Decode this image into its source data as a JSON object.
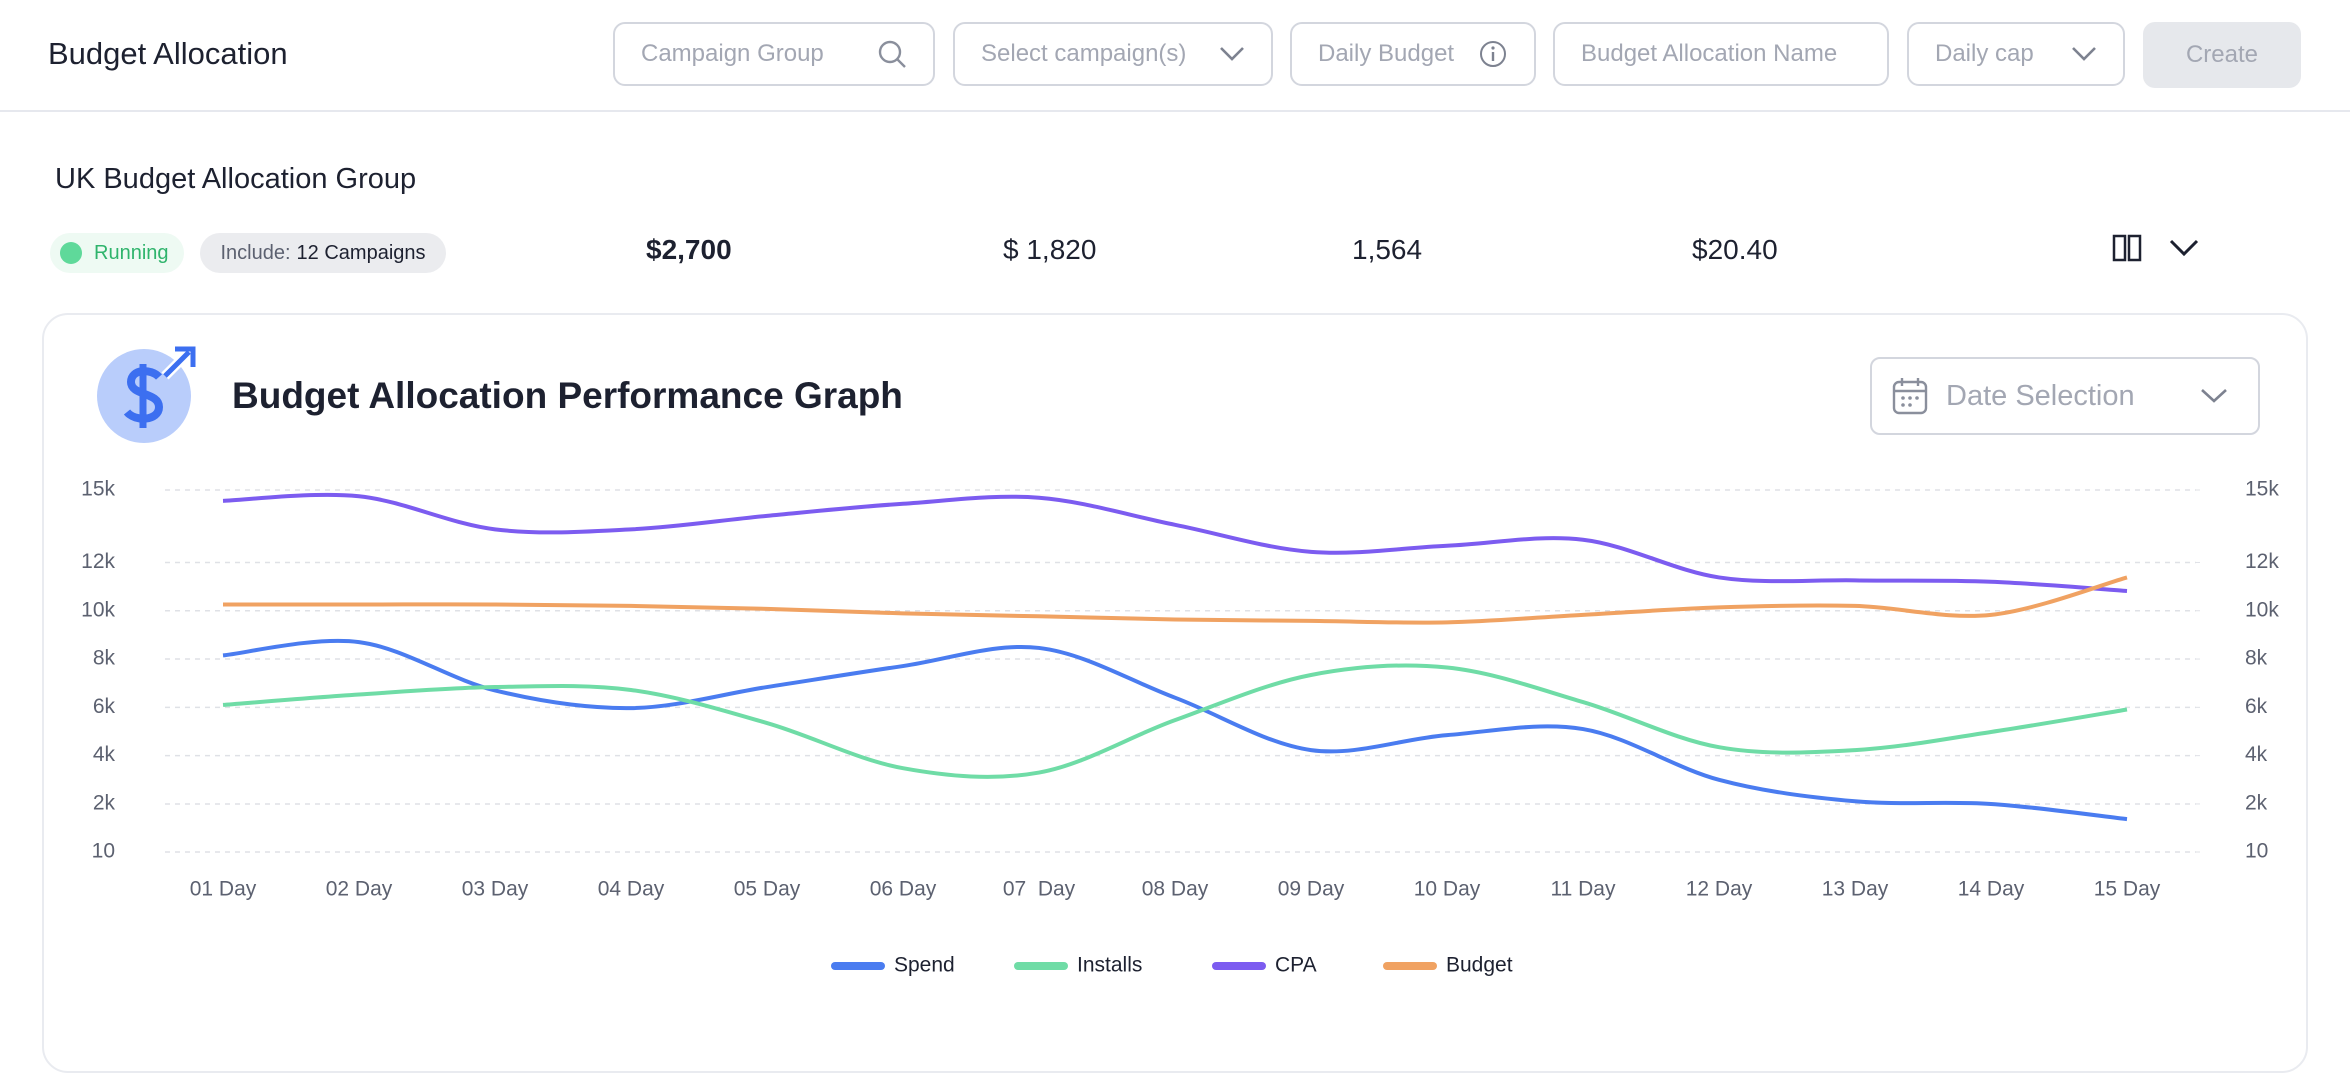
{
  "header": {
    "title": "Budget Allocation",
    "inputs": {
      "campaign_group": "Campaign Group",
      "select_campaigns": "Select campaign(s)",
      "daily_budget": "Daily Budget",
      "allocation_name": "Budget Allocation Name",
      "daily_cap": "Daily cap"
    },
    "create_button": "Create"
  },
  "group": {
    "name": "UK Budget Allocation Group",
    "status": "Running",
    "include_label": "Include:",
    "include_value": "12 Campaigns",
    "metrics": [
      "$2,700",
      "$ 1,820",
      "1,564",
      "$20.40"
    ]
  },
  "panel": {
    "title": "Budget Allocation Performance Graph",
    "date_selection": "Date Selection"
  },
  "chart_data": {
    "type": "line",
    "categories": [
      "01 Day",
      "02 Day",
      "03 Day",
      "04 Day",
      "05 Day",
      "06 Day",
      "07  Day",
      "08 Day",
      "09 Day",
      "10 Day",
      "11 Day",
      "12 Day",
      "13 Day",
      "14 Day",
      "15 Day"
    ],
    "series": [
      {
        "name": "Spend",
        "color": "#4a7cf0",
        "values": [
          8150,
          8700,
          6700,
          5970,
          6840,
          7710,
          8460,
          6400,
          4230,
          4850,
          5100,
          3000,
          2110,
          2000,
          1370
        ]
      },
      {
        "name": "Installs",
        "color": "#6fdca6",
        "values": [
          6100,
          6530,
          6840,
          6720,
          5350,
          3480,
          3300,
          5470,
          7340,
          7650,
          6220,
          4350,
          4230,
          4980,
          5910
        ]
      },
      {
        "name": "CPA",
        "color": "#7c5cf0",
        "values": [
          14550,
          14740,
          13370,
          13370,
          13930,
          14430,
          14680,
          13560,
          12440,
          12690,
          12940,
          11380,
          11260,
          11200,
          10820
        ]
      },
      {
        "name": "Budget",
        "color": "#f0a262",
        "values": [
          10260,
          10260,
          10260,
          10200,
          10080,
          9890,
          9770,
          9640,
          9580,
          9520,
          9830,
          10140,
          10200,
          9830,
          11380
        ]
      }
    ],
    "ylim": [
      10,
      15000
    ],
    "yticks": [
      10,
      {
        "value": 2000,
        "label": "2k"
      },
      {
        "value": 4000,
        "label": "4k"
      },
      {
        "value": 6000,
        "label": "6k"
      },
      {
        "value": 8000,
        "label": "8k"
      },
      {
        "value": 10000,
        "label": "10k"
      },
      {
        "value": 12000,
        "label": "12k"
      },
      {
        "value": 15000,
        "label": "15k"
      }
    ],
    "y2lim": [
      10,
      15000
    ],
    "y2ticks": [
      10,
      {
        "value": 2000,
        "label": "2k"
      },
      {
        "value": 4000,
        "label": "4k"
      },
      {
        "value": 6000,
        "label": "6k"
      },
      {
        "value": 8000,
        "label": "8k"
      },
      {
        "value": 10000,
        "label": "10k"
      },
      {
        "value": 12000,
        "label": "12k"
      },
      {
        "value": 15000,
        "label": "15k"
      }
    ],
    "grid": true,
    "legend": "bottom"
  }
}
